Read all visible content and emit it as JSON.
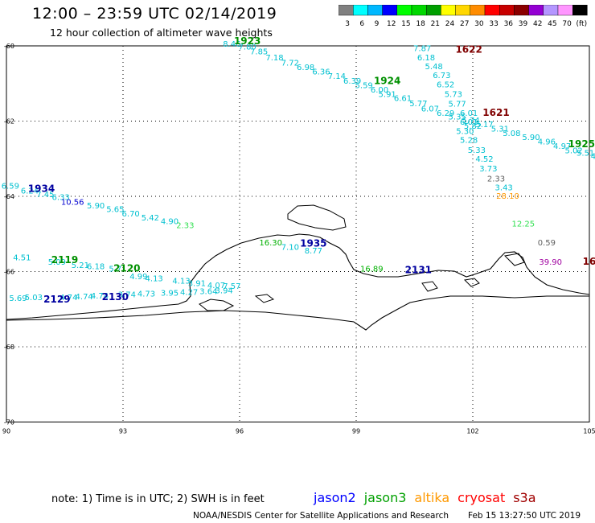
{
  "header": {
    "title": "12:00 – 23:59 UTC 02/14/2019",
    "subtitle": "12 hour collection of altimeter wave heights"
  },
  "colorbar": {
    "colors": [
      "#808080",
      "#00ffff",
      "#00b8ff",
      "#0000ff",
      "#00ff00",
      "#00d800",
      "#009f00",
      "#ffff00",
      "#ffd700",
      "#ff8c00",
      "#ff0000",
      "#c80000",
      "#8b0000",
      "#9400d3",
      "#b496ff",
      "#ff96ff",
      "#000000"
    ],
    "labels": [
      "3",
      "6",
      "9",
      "12",
      "15",
      "18",
      "21",
      "24",
      "27",
      "30",
      "33",
      "36",
      "39",
      "42",
      "45",
      "70",
      "(ft)"
    ]
  },
  "axes": {
    "x_ticks": [
      "90",
      "93",
      "96",
      "99",
      "102",
      "105"
    ],
    "y_ticks": [
      "-60",
      "-62",
      "-64",
      "-66",
      "-68",
      "-70"
    ]
  },
  "tracks": [
    {
      "color": "#00c0d0",
      "values": [
        {
          "lon": 95.8,
          "lat": -60.02,
          "v": "8.46"
        },
        {
          "lon": 96.2,
          "lat": -60.1,
          "v": "7.80"
        },
        {
          "lon": 96.5,
          "lat": -60.22,
          "v": "7.85"
        },
        {
          "lon": 96.9,
          "lat": -60.38,
          "v": "7.18"
        },
        {
          "lon": 97.3,
          "lat": -60.52,
          "v": "7.72"
        },
        {
          "lon": 97.7,
          "lat": -60.64,
          "v": "6.98"
        },
        {
          "lon": 98.1,
          "lat": -60.76,
          "v": "6.36"
        },
        {
          "lon": 98.5,
          "lat": -60.88,
          "v": "7.14"
        },
        {
          "lon": 98.9,
          "lat": -61.0,
          "v": "6.39"
        },
        {
          "lon": 99.2,
          "lat": -61.12,
          "v": "5.59"
        },
        {
          "lon": 99.6,
          "lat": -61.24,
          "v": "6.00"
        },
        {
          "lon": 99.8,
          "lat": -61.36,
          "v": "5.91"
        },
        {
          "lon": 100.2,
          "lat": -61.46,
          "v": "6.61"
        },
        {
          "lon": 100.6,
          "lat": -61.6,
          "v": "5.77"
        },
        {
          "lon": 100.9,
          "lat": -61.74,
          "v": "6.07"
        },
        {
          "lon": 101.3,
          "lat": -61.86,
          "v": "6.29"
        },
        {
          "lon": 101.6,
          "lat": -61.96,
          "v": "5.35"
        },
        {
          "lon": 101.95,
          "lat": -62.05,
          "v": "5.74"
        },
        {
          "lon": 102.3,
          "lat": -62.16,
          "v": "5.17"
        },
        {
          "lon": 102.7,
          "lat": -62.28,
          "v": "5.31"
        },
        {
          "lon": 103.0,
          "lat": -62.4,
          "v": "5.08"
        },
        {
          "lon": 103.5,
          "lat": -62.5,
          "v": "5.90"
        },
        {
          "lon": 103.9,
          "lat": -62.62,
          "v": "4.96"
        },
        {
          "lon": 104.3,
          "lat": -62.74,
          "v": "4.97"
        },
        {
          "lon": 104.6,
          "lat": -62.86,
          "v": "5.02"
        },
        {
          "lon": 104.9,
          "lat": -62.92,
          "v": "5.51"
        },
        {
          "lon": 105.2,
          "lat": -63.0,
          "v": "4.9"
        }
      ]
    },
    {
      "color": "#00c0d0",
      "values": [
        {
          "lon": 100.7,
          "lat": -60.14,
          "v": "7.87"
        },
        {
          "lon": 100.8,
          "lat": -60.38,
          "v": "6.18"
        },
        {
          "lon": 101.0,
          "lat": -60.62,
          "v": "5.48"
        },
        {
          "lon": 101.2,
          "lat": -60.86,
          "v": "6.73"
        },
        {
          "lon": 101.3,
          "lat": -61.1,
          "v": "6.52"
        },
        {
          "lon": 101.5,
          "lat": -61.36,
          "v": "5.73"
        },
        {
          "lon": 101.6,
          "lat": -61.62,
          "v": "5.77"
        },
        {
          "lon": 101.9,
          "lat": -61.86,
          "v": "6.01"
        },
        {
          "lon": 101.9,
          "lat": -62.1,
          "v": "6.01"
        },
        {
          "lon": 102.0,
          "lat": -62.2,
          "v": "5.82"
        },
        {
          "lon": 101.8,
          "lat": -62.34,
          "v": "5.30"
        },
        {
          "lon": 101.9,
          "lat": -62.58,
          "v": "5.28"
        },
        {
          "lon": 102.1,
          "lat": -62.84,
          "v": "5.33"
        },
        {
          "lon": 102.3,
          "lat": -63.08,
          "v": "4.52"
        },
        {
          "lon": 102.4,
          "lat": -63.34,
          "v": "3.73"
        }
      ]
    },
    {
      "color": "#606060",
      "values": [
        {
          "lon": 102.6,
          "lat": -63.6,
          "v": "2.33"
        }
      ]
    },
    {
      "color": "#00c0d0",
      "values": [
        {
          "lon": 102.8,
          "lat": -63.84,
          "v": "3.43"
        }
      ]
    },
    {
      "color": "#ff9900",
      "values": [
        {
          "lon": 102.9,
          "lat": -64.06,
          "v": "28.10"
        }
      ]
    },
    {
      "color": "#30e050",
      "values": [
        {
          "lon": 103.3,
          "lat": -64.8,
          "v": "12.25"
        }
      ]
    },
    {
      "color": "#606060",
      "values": [
        {
          "lon": 103.9,
          "lat": -65.3,
          "v": "0.59"
        }
      ]
    },
    {
      "color": "#a000a0",
      "values": [
        {
          "lon": 104.0,
          "lat": -65.82,
          "v": "39.90"
        }
      ]
    },
    {
      "color": "#00c0d0",
      "values": [
        {
          "lon": 90.1,
          "lat": -63.8,
          "v": "6.59"
        },
        {
          "lon": 90.6,
          "lat": -63.92,
          "v": "6.24"
        },
        {
          "lon": 91.0,
          "lat": -64.02,
          "v": "7.45"
        },
        {
          "lon": 91.4,
          "lat": -64.1,
          "v": "6.33"
        }
      ]
    },
    {
      "color": "#0000d0",
      "values": [
        {
          "lon": 91.7,
          "lat": -64.22,
          "v": "10.56"
        }
      ]
    },
    {
      "color": "#00c0d0",
      "values": [
        {
          "lon": 92.3,
          "lat": -64.32,
          "v": "5.90"
        },
        {
          "lon": 92.8,
          "lat": -64.42,
          "v": "5.65"
        },
        {
          "lon": 93.2,
          "lat": -64.54,
          "v": "6.70"
        },
        {
          "lon": 93.7,
          "lat": -64.64,
          "v": "5.42"
        },
        {
          "lon": 94.2,
          "lat": -64.74,
          "v": "4.90"
        }
      ]
    },
    {
      "color": "#30e050",
      "values": [
        {
          "lon": 94.6,
          "lat": -64.84,
          "v": "2.33"
        }
      ]
    },
    {
      "color": "#00b000",
      "values": [
        {
          "lon": 96.8,
          "lat": -65.3,
          "v": "16.30"
        }
      ]
    },
    {
      "color": "#00c0d0",
      "values": [
        {
          "lon": 97.3,
          "lat": -65.42,
          "v": "7.10"
        },
        {
          "lon": 97.9,
          "lat": -65.52,
          "v": "8.77"
        }
      ]
    },
    {
      "color": "#00c0d0",
      "values": [
        {
          "lon": 90.4,
          "lat": -65.7,
          "v": "4.51"
        },
        {
          "lon": 91.3,
          "lat": -65.82,
          "v": "5.09"
        },
        {
          "lon": 91.9,
          "lat": -65.9,
          "v": "5.21"
        },
        {
          "lon": 92.3,
          "lat": -65.94,
          "v": "6.18"
        },
        {
          "lon": 92.8,
          "lat": -66.0,
          "v": "5.7"
        },
        {
          "lon": 93.4,
          "lat": -66.2,
          "v": "4.99"
        },
        {
          "lon": 93.8,
          "lat": -66.26,
          "v": "4.13"
        },
        {
          "lon": 94.5,
          "lat": -66.32,
          "v": "4.13"
        },
        {
          "lon": 94.9,
          "lat": -66.38,
          "v": "3.91"
        },
        {
          "lon": 95.4,
          "lat": -66.44,
          "v": "4.07"
        },
        {
          "lon": 95.8,
          "lat": -66.46,
          "v": "7.57"
        },
        {
          "lon": 90.3,
          "lat": -66.78,
          "v": "5.69"
        },
        {
          "lon": 90.7,
          "lat": -66.76,
          "v": "5.03"
        },
        {
          "lon": 91.6,
          "lat": -66.76,
          "v": "4.74"
        },
        {
          "lon": 92.0,
          "lat": -66.74,
          "v": "4.74"
        },
        {
          "lon": 92.4,
          "lat": -66.72,
          "v": "4.74"
        },
        {
          "lon": 93.1,
          "lat": -66.68,
          "v": "3.74"
        },
        {
          "lon": 93.6,
          "lat": -66.66,
          "v": "4.73"
        },
        {
          "lon": 94.2,
          "lat": -66.64,
          "v": "3.95"
        },
        {
          "lon": 94.7,
          "lat": -66.62,
          "v": "4.27"
        },
        {
          "lon": 95.2,
          "lat": -66.6,
          "v": "3.64"
        },
        {
          "lon": 95.6,
          "lat": -66.58,
          "v": "3.94"
        }
      ]
    },
    {
      "color": "#00b000",
      "values": [
        {
          "lon": 99.4,
          "lat": -66.0,
          "v": "16.89"
        }
      ]
    }
  ],
  "time_labels": [
    {
      "lon": 96.2,
      "lat": -59.96,
      "t": "1923",
      "color": "#009000"
    },
    {
      "lon": 99.8,
      "lat": -61.02,
      "t": "1924",
      "color": "#009000"
    },
    {
      "lon": 104.8,
      "lat": -62.7,
      "t": "1925",
      "color": "#009000"
    },
    {
      "lon": 101.9,
      "lat": -60.18,
      "t": "1622",
      "color": "#800000"
    },
    {
      "lon": 102.6,
      "lat": -61.86,
      "t": "1621",
      "color": "#800000"
    },
    {
      "lon": 105.0,
      "lat": -65.82,
      "t": "16",
      "color": "#800000"
    },
    {
      "lon": 90.9,
      "lat": -63.88,
      "t": "1934",
      "color": "#0000a0"
    },
    {
      "lon": 97.9,
      "lat": -65.34,
      "t": "1935",
      "color": "#0000a0"
    },
    {
      "lon": 91.5,
      "lat": -65.78,
      "t": "2119",
      "color": "#009000"
    },
    {
      "lon": 93.1,
      "lat": -66.0,
      "t": "2120",
      "color": "#009000"
    },
    {
      "lon": 91.3,
      "lat": -66.82,
      "t": "2129",
      "color": "#0000a0"
    },
    {
      "lon": 92.8,
      "lat": -66.76,
      "t": "2130",
      "color": "#0000a0"
    },
    {
      "lon": 100.6,
      "lat": -66.04,
      "t": "2131",
      "color": "#0000a0"
    }
  ],
  "footer": {
    "note": "note: 1) Time is in UTC; 2) SWH is in feet",
    "legend": [
      {
        "name": "jason2",
        "color": "#0000ff"
      },
      {
        "name": "jason3",
        "color": "#00a000"
      },
      {
        "name": "altika",
        "color": "#ff9900"
      },
      {
        "name": "cryosat",
        "color": "#ff0000"
      },
      {
        "name": "s3a",
        "color": "#a00000"
      }
    ],
    "credit": "NOAA/NESDIS Center for Satellite Applications and Research",
    "timestamp": "Feb 15 13:27:50 UTC 2019"
  }
}
